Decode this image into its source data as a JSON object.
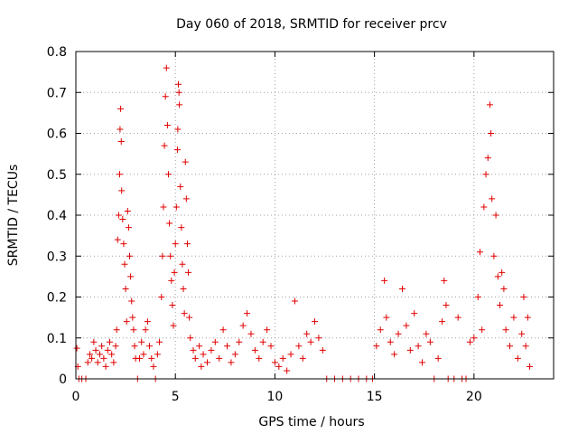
{
  "chart_data": {
    "type": "scatter",
    "title": "Day 060 of 2018, SRMTID for receiver prcv",
    "xlabel": "GPS time / hours",
    "ylabel": "SRMTID / TECUs",
    "xlim": [
      0,
      24
    ],
    "ylim": [
      0,
      0.8
    ],
    "xticks": [
      "0",
      "5",
      "10",
      "15",
      "20"
    ],
    "yticks": [
      "0",
      "0.1",
      "0.2",
      "0.3",
      "0.4",
      "0.5",
      "0.6",
      "0.7",
      "0.8"
    ],
    "grid": true,
    "marker": "plus",
    "color": "#e00000",
    "series": [
      {
        "name": "SRMTID",
        "points": [
          [
            0.05,
            0.075
          ],
          [
            0.1,
            0.03
          ],
          [
            0.15,
            0.0
          ],
          [
            0.3,
            0.0
          ],
          [
            0.5,
            0.0
          ],
          [
            0.6,
            0.04
          ],
          [
            0.7,
            0.06
          ],
          [
            0.8,
            0.05
          ],
          [
            0.9,
            0.09
          ],
          [
            1.0,
            0.07
          ],
          [
            1.1,
            0.04
          ],
          [
            1.2,
            0.06
          ],
          [
            1.3,
            0.08
          ],
          [
            1.4,
            0.05
          ],
          [
            1.5,
            0.03
          ],
          [
            1.6,
            0.07
          ],
          [
            1.7,
            0.09
          ],
          [
            1.8,
            0.06
          ],
          [
            1.9,
            0.04
          ],
          [
            2.0,
            0.08
          ],
          [
            2.05,
            0.12
          ],
          [
            2.1,
            0.34
          ],
          [
            2.15,
            0.4
          ],
          [
            2.2,
            0.5
          ],
          [
            2.22,
            0.61
          ],
          [
            2.25,
            0.66
          ],
          [
            2.28,
            0.58
          ],
          [
            2.3,
            0.46
          ],
          [
            2.35,
            0.39
          ],
          [
            2.4,
            0.33
          ],
          [
            2.45,
            0.28
          ],
          [
            2.5,
            0.22
          ],
          [
            2.55,
            0.14
          ],
          [
            2.6,
            0.41
          ],
          [
            2.65,
            0.37
          ],
          [
            2.7,
            0.3
          ],
          [
            2.75,
            0.25
          ],
          [
            2.8,
            0.19
          ],
          [
            2.85,
            0.15
          ],
          [
            2.9,
            0.12
          ],
          [
            2.95,
            0.08
          ],
          [
            3.0,
            0.05
          ],
          [
            3.1,
            0.0
          ],
          [
            3.2,
            0.05
          ],
          [
            3.3,
            0.09
          ],
          [
            3.4,
            0.06
          ],
          [
            3.5,
            0.12
          ],
          [
            3.6,
            0.14
          ],
          [
            3.7,
            0.08
          ],
          [
            3.8,
            0.05
          ],
          [
            3.9,
            0.03
          ],
          [
            4.0,
            0.0
          ],
          [
            4.1,
            0.06
          ],
          [
            4.2,
            0.09
          ],
          [
            4.3,
            0.2
          ],
          [
            4.35,
            0.3
          ],
          [
            4.4,
            0.42
          ],
          [
            4.45,
            0.57
          ],
          [
            4.5,
            0.69
          ],
          [
            4.55,
            0.76
          ],
          [
            4.6,
            0.62
          ],
          [
            4.65,
            0.5
          ],
          [
            4.7,
            0.38
          ],
          [
            4.75,
            0.3
          ],
          [
            4.8,
            0.24
          ],
          [
            4.85,
            0.18
          ],
          [
            4.9,
            0.13
          ],
          [
            4.95,
            0.26
          ],
          [
            5.0,
            0.33
          ],
          [
            5.05,
            0.42
          ],
          [
            5.1,
            0.56
          ],
          [
            5.12,
            0.61
          ],
          [
            5.15,
            0.72
          ],
          [
            5.18,
            0.7
          ],
          [
            5.2,
            0.67
          ],
          [
            5.25,
            0.47
          ],
          [
            5.3,
            0.37
          ],
          [
            5.35,
            0.28
          ],
          [
            5.4,
            0.22
          ],
          [
            5.45,
            0.16
          ],
          [
            5.5,
            0.53
          ],
          [
            5.55,
            0.44
          ],
          [
            5.6,
            0.33
          ],
          [
            5.65,
            0.26
          ],
          [
            5.7,
            0.15
          ],
          [
            5.75,
            0.1
          ],
          [
            5.9,
            0.07
          ],
          [
            6.0,
            0.05
          ],
          [
            6.2,
            0.08
          ],
          [
            6.3,
            0.03
          ],
          [
            6.4,
            0.06
          ],
          [
            6.6,
            0.04
          ],
          [
            6.8,
            0.07
          ],
          [
            7.0,
            0.09
          ],
          [
            7.2,
            0.05
          ],
          [
            7.4,
            0.12
          ],
          [
            7.6,
            0.08
          ],
          [
            7.8,
            0.04
          ],
          [
            8.0,
            0.06
          ],
          [
            8.2,
            0.09
          ],
          [
            8.4,
            0.13
          ],
          [
            8.6,
            0.16
          ],
          [
            8.8,
            0.11
          ],
          [
            9.0,
            0.07
          ],
          [
            9.2,
            0.05
          ],
          [
            9.4,
            0.09
          ],
          [
            9.6,
            0.12
          ],
          [
            9.8,
            0.08
          ],
          [
            10.0,
            0.04
          ],
          [
            10.2,
            0.03
          ],
          [
            10.4,
            0.05
          ],
          [
            10.6,
            0.02
          ],
          [
            10.8,
            0.06
          ],
          [
            11.0,
            0.19
          ],
          [
            11.2,
            0.08
          ],
          [
            11.4,
            0.05
          ],
          [
            11.6,
            0.11
          ],
          [
            11.8,
            0.09
          ],
          [
            12.0,
            0.14
          ],
          [
            12.2,
            0.1
          ],
          [
            12.4,
            0.07
          ],
          [
            12.6,
            0.0
          ],
          [
            13.0,
            0.0
          ],
          [
            13.4,
            0.0
          ],
          [
            13.8,
            0.0
          ],
          [
            14.2,
            0.0
          ],
          [
            14.6,
            0.0
          ],
          [
            14.9,
            0.0
          ],
          [
            15.1,
            0.08
          ],
          [
            15.3,
            0.12
          ],
          [
            15.5,
            0.24
          ],
          [
            15.6,
            0.15
          ],
          [
            15.8,
            0.09
          ],
          [
            16.0,
            0.06
          ],
          [
            16.2,
            0.11
          ],
          [
            16.4,
            0.22
          ],
          [
            16.6,
            0.13
          ],
          [
            16.8,
            0.07
          ],
          [
            17.0,
            0.16
          ],
          [
            17.2,
            0.08
          ],
          [
            17.4,
            0.04
          ],
          [
            17.6,
            0.11
          ],
          [
            17.8,
            0.09
          ],
          [
            18.0,
            0.0
          ],
          [
            18.2,
            0.05
          ],
          [
            18.4,
            0.14
          ],
          [
            18.5,
            0.24
          ],
          [
            18.6,
            0.18
          ],
          [
            18.7,
            0.0
          ],
          [
            19.0,
            0.0
          ],
          [
            19.2,
            0.15
          ],
          [
            19.4,
            0.0
          ],
          [
            19.6,
            0.0
          ],
          [
            19.8,
            0.09
          ],
          [
            20.0,
            0.1
          ],
          [
            20.2,
            0.2
          ],
          [
            20.3,
            0.31
          ],
          [
            20.4,
            0.12
          ],
          [
            20.5,
            0.42
          ],
          [
            20.6,
            0.5
          ],
          [
            20.7,
            0.54
          ],
          [
            20.8,
            0.67
          ],
          [
            20.85,
            0.6
          ],
          [
            20.9,
            0.44
          ],
          [
            21.0,
            0.3
          ],
          [
            21.1,
            0.4
          ],
          [
            21.2,
            0.25
          ],
          [
            21.3,
            0.18
          ],
          [
            21.4,
            0.26
          ],
          [
            21.5,
            0.22
          ],
          [
            21.6,
            0.12
          ],
          [
            21.8,
            0.08
          ],
          [
            22.0,
            0.15
          ],
          [
            22.2,
            0.05
          ],
          [
            22.4,
            0.11
          ],
          [
            22.5,
            0.2
          ],
          [
            22.6,
            0.08
          ],
          [
            22.7,
            0.15
          ],
          [
            22.8,
            0.03
          ]
        ]
      }
    ]
  }
}
